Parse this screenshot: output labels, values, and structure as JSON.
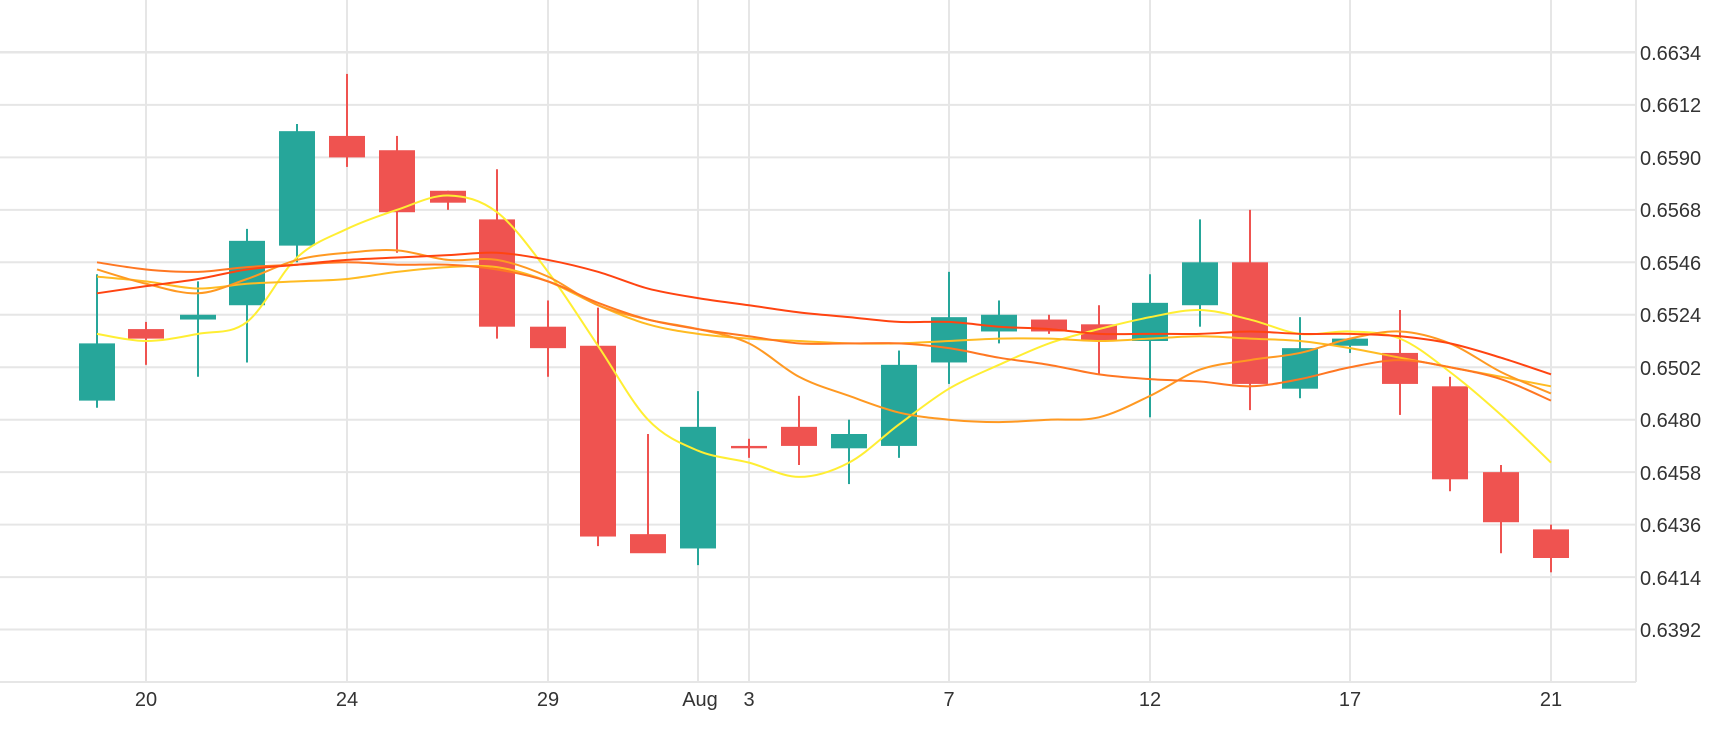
{
  "chart_data": {
    "type": "candlestick",
    "grid": true,
    "y_axis_position": "right",
    "ylim": [
      0.637,
      0.6656
    ],
    "y_ticks": [
      "0.6392",
      "0.6414",
      "0.6436",
      "0.6458",
      "0.6480",
      "0.6502",
      "0.6524",
      "0.6546",
      "0.6568",
      "0.6590",
      "0.6612",
      "0.6634"
    ],
    "x_ticks": [
      "20",
      "24",
      "29",
      "Aug",
      "3",
      "7",
      "12",
      "17",
      "21"
    ],
    "candles": [
      {
        "o": 0.6488,
        "h": 0.6541,
        "l": 0.6485,
        "c": 0.6512
      },
      {
        "o": 0.6518,
        "h": 0.6521,
        "l": 0.6503,
        "c": 0.6514
      },
      {
        "o": 0.6522,
        "h": 0.6538,
        "l": 0.6498,
        "c": 0.6524
      },
      {
        "o": 0.6528,
        "h": 0.656,
        "l": 0.6504,
        "c": 0.6555
      },
      {
        "o": 0.6553,
        "h": 0.6604,
        "l": 0.6546,
        "c": 0.6601
      },
      {
        "o": 0.6599,
        "h": 0.6625,
        "l": 0.6586,
        "c": 0.659
      },
      {
        "o": 0.6593,
        "h": 0.6599,
        "l": 0.655,
        "c": 0.6567
      },
      {
        "o": 0.6576,
        "h": 0.6576,
        "l": 0.6568,
        "c": 0.6571
      },
      {
        "o": 0.6564,
        "h": 0.6585,
        "l": 0.6514,
        "c": 0.6519
      },
      {
        "o": 0.6519,
        "h": 0.653,
        "l": 0.6498,
        "c": 0.651
      },
      {
        "o": 0.6511,
        "h": 0.6527,
        "l": 0.6427,
        "c": 0.6431
      },
      {
        "o": 0.6432,
        "h": 0.6474,
        "l": 0.6425,
        "c": 0.6424
      },
      {
        "o": 0.6426,
        "h": 0.6492,
        "l": 0.6419,
        "c": 0.6477
      },
      {
        "o": 0.6469,
        "h": 0.6472,
        "l": 0.6464,
        "c": 0.6468
      },
      {
        "o": 0.6477,
        "h": 0.649,
        "l": 0.6461,
        "c": 0.6469
      },
      {
        "o": 0.6468,
        "h": 0.648,
        "l": 0.6453,
        "c": 0.6474
      },
      {
        "o": 0.6469,
        "h": 0.6509,
        "l": 0.6464,
        "c": 0.6503
      },
      {
        "o": 0.6504,
        "h": 0.6542,
        "l": 0.6495,
        "c": 0.6523
      },
      {
        "o": 0.6517,
        "h": 0.653,
        "l": 0.6512,
        "c": 0.6524
      },
      {
        "o": 0.6522,
        "h": 0.6524,
        "l": 0.6516,
        "c": 0.6517
      },
      {
        "o": 0.652,
        "h": 0.6528,
        "l": 0.6499,
        "c": 0.6513
      },
      {
        "o": 0.6513,
        "h": 0.6541,
        "l": 0.6481,
        "c": 0.6529
      },
      {
        "o": 0.6528,
        "h": 0.6564,
        "l": 0.6519,
        "c": 0.6546
      },
      {
        "o": 0.6546,
        "h": 0.6568,
        "l": 0.6484,
        "c": 0.6495
      },
      {
        "o": 0.6493,
        "h": 0.6523,
        "l": 0.6489,
        "c": 0.651
      },
      {
        "o": 0.6511,
        "h": 0.6514,
        "l": 0.6508,
        "c": 0.6514
      },
      {
        "o": 0.6508,
        "h": 0.6526,
        "l": 0.6482,
        "c": 0.6495
      },
      {
        "o": 0.6494,
        "h": 0.6498,
        "l": 0.645,
        "c": 0.6455
      },
      {
        "o": 0.6458,
        "h": 0.6461,
        "l": 0.6424,
        "c": 0.6437
      },
      {
        "o": 0.6434,
        "h": 0.6436,
        "l": 0.6416,
        "c": 0.6422
      }
    ],
    "moving_averages": [
      {
        "color": "#ffee33",
        "values": [
          0.6516,
          0.6513,
          0.6516,
          0.6521,
          0.6548,
          0.656,
          0.6568,
          0.6574,
          0.6567,
          0.6542,
          0.6511,
          0.648,
          0.6467,
          0.6462,
          0.6456,
          0.6462,
          0.6478,
          0.6493,
          0.6503,
          0.6512,
          0.6518,
          0.6523,
          0.6526,
          0.6522,
          0.6516,
          0.6517,
          0.6514,
          0.65,
          0.6482,
          0.6462
        ]
      },
      {
        "color": "#ffbb22",
        "values": [
          0.654,
          0.6538,
          0.6535,
          0.6537,
          0.6538,
          0.6539,
          0.6542,
          0.6544,
          0.6544,
          0.6538,
          0.6528,
          0.652,
          0.6516,
          0.6514,
          0.6513,
          0.6512,
          0.6512,
          0.6513,
          0.6514,
          0.6514,
          0.6513,
          0.6514,
          0.6515,
          0.6514,
          0.6513,
          0.651,
          0.6506,
          0.6502,
          0.6498,
          0.6494
        ]
      },
      {
        "color": "#ff9922",
        "values": [
          0.6543,
          0.6537,
          0.6533,
          0.6539,
          0.6547,
          0.655,
          0.6551,
          0.6547,
          0.6547,
          0.654,
          0.6528,
          0.6522,
          0.6518,
          0.6512,
          0.6498,
          0.649,
          0.6483,
          0.648,
          0.6479,
          0.648,
          0.6481,
          0.649,
          0.6501,
          0.6505,
          0.6508,
          0.6514,
          0.6517,
          0.6512,
          0.65,
          0.6491
        ]
      },
      {
        "color": "#ff7722",
        "values": [
          0.6546,
          0.6543,
          0.6542,
          0.6544,
          0.6545,
          0.6546,
          0.6545,
          0.6545,
          0.6543,
          0.6538,
          0.6529,
          0.6522,
          0.6518,
          0.6515,
          0.6512,
          0.6512,
          0.6512,
          0.651,
          0.6506,
          0.6503,
          0.6499,
          0.6497,
          0.6496,
          0.6494,
          0.6497,
          0.6502,
          0.6505,
          0.6502,
          0.6497,
          0.6488
        ]
      },
      {
        "color": "#ff4411",
        "values": [
          0.6533,
          0.6536,
          0.6539,
          0.6543,
          0.6545,
          0.6547,
          0.6548,
          0.6549,
          0.655,
          0.6547,
          0.6542,
          0.6535,
          0.6531,
          0.6528,
          0.6525,
          0.6523,
          0.6521,
          0.6521,
          0.6519,
          0.6518,
          0.6516,
          0.6516,
          0.6516,
          0.6517,
          0.6516,
          0.6516,
          0.6515,
          0.6512,
          0.6506,
          0.6499
        ]
      }
    ],
    "up_color": "#26a69a",
    "down_color": "#ef5350",
    "grid_color": "#e6e6e6"
  }
}
